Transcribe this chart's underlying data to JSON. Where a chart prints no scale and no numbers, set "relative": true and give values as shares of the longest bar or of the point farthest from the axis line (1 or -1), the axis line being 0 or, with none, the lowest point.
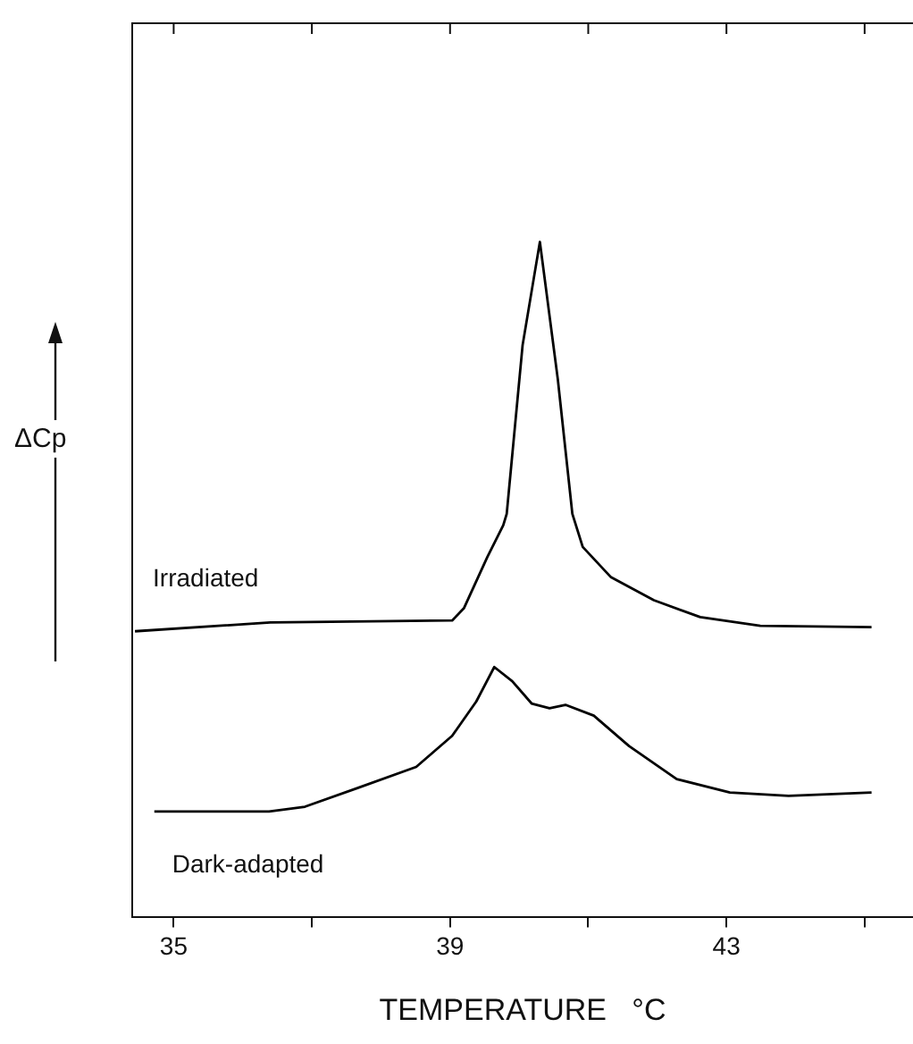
{
  "chart_data": {
    "type": "line",
    "xlabel": "TEMPERATURE   °C",
    "ylabel": "ΔCp",
    "relative": true,
    "legend": false,
    "marker": "none",
    "line_style": "solid",
    "grid": false,
    "xlim": [
      34.4,
      45.7
    ],
    "xticks": [
      35,
      {
        "value": 37,
        "label": null
      },
      39,
      {
        "value": 41,
        "label": null
      },
      43,
      {
        "value": 45,
        "label": null
      }
    ],
    "series": [
      {
        "name": "Irradiated",
        "color": "#000000",
        "x": [
          34.44,
          36.4,
          39.03,
          39.2,
          39.54,
          39.77,
          39.82,
          40.05,
          40.3,
          40.56,
          40.77,
          40.92,
          41.33,
          41.95,
          42.62,
          43.49,
          45.1
        ],
        "values": [
          0.423,
          0.436,
          0.439,
          0.457,
          0.533,
          0.58,
          0.597,
          0.847,
          1.0,
          0.796,
          0.597,
          0.548,
          0.503,
          0.469,
          0.444,
          0.431,
          0.429
        ]
      },
      {
        "name": "Dark-adapted",
        "color": "#000000",
        "x": [
          34.72,
          36.38,
          36.9,
          37.67,
          38.51,
          39.03,
          39.38,
          39.64,
          39.9,
          40.18,
          40.44,
          40.67,
          41.08,
          41.59,
          42.28,
          43.05,
          43.9,
          45.1
        ],
        "values": [
          0.156,
          0.156,
          0.163,
          0.191,
          0.222,
          0.268,
          0.319,
          0.37,
          0.349,
          0.316,
          0.309,
          0.314,
          0.298,
          0.253,
          0.204,
          0.184,
          0.179,
          0.184
        ]
      }
    ]
  }
}
